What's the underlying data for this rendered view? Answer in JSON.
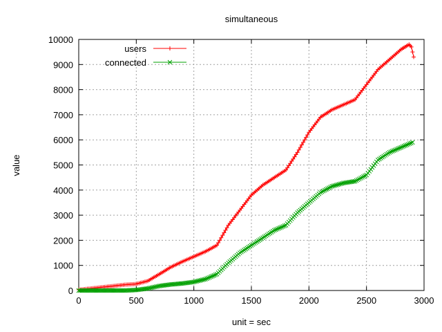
{
  "chart_data": {
    "type": "line",
    "title": "simultaneous",
    "xlabel": "unit = sec",
    "ylabel": "value",
    "xlim": [
      0,
      3000
    ],
    "ylim": [
      0,
      10000
    ],
    "xticks": [
      0,
      500,
      1000,
      1500,
      2000,
      2500,
      3000
    ],
    "yticks": [
      0,
      1000,
      2000,
      3000,
      4000,
      5000,
      6000,
      7000,
      8000,
      9000,
      10000
    ],
    "grid": true,
    "legend_position": "top-left",
    "series": [
      {
        "name": "users",
        "color": "#ff0000",
        "marker": "plus",
        "points": [
          [
            0,
            30
          ],
          [
            100,
            80
          ],
          [
            200,
            130
          ],
          [
            300,
            180
          ],
          [
            400,
            230
          ],
          [
            500,
            260
          ],
          [
            600,
            380
          ],
          [
            700,
            650
          ],
          [
            800,
            930
          ],
          [
            900,
            1150
          ],
          [
            1000,
            1350
          ],
          [
            1100,
            1550
          ],
          [
            1200,
            1800
          ],
          [
            1300,
            2600
          ],
          [
            1400,
            3200
          ],
          [
            1500,
            3800
          ],
          [
            1600,
            4200
          ],
          [
            1700,
            4500
          ],
          [
            1800,
            4800
          ],
          [
            1900,
            5500
          ],
          [
            2000,
            6300
          ],
          [
            2100,
            6900
          ],
          [
            2200,
            7200
          ],
          [
            2300,
            7400
          ],
          [
            2400,
            7600
          ],
          [
            2500,
            8200
          ],
          [
            2600,
            8800
          ],
          [
            2700,
            9200
          ],
          [
            2800,
            9600
          ],
          [
            2870,
            9800
          ],
          [
            2890,
            9700
          ],
          [
            2900,
            9500
          ],
          [
            2910,
            9300
          ]
        ]
      },
      {
        "name": "connected",
        "color": "#00a000",
        "marker": "x",
        "points": [
          [
            0,
            0
          ],
          [
            100,
            0
          ],
          [
            200,
            0
          ],
          [
            300,
            0
          ],
          [
            400,
            0
          ],
          [
            500,
            20
          ],
          [
            600,
            80
          ],
          [
            700,
            180
          ],
          [
            800,
            240
          ],
          [
            900,
            280
          ],
          [
            1000,
            340
          ],
          [
            1100,
            450
          ],
          [
            1200,
            650
          ],
          [
            1300,
            1100
          ],
          [
            1400,
            1500
          ],
          [
            1500,
            1800
          ],
          [
            1600,
            2100
          ],
          [
            1700,
            2400
          ],
          [
            1800,
            2600
          ],
          [
            1900,
            3100
          ],
          [
            2000,
            3500
          ],
          [
            2100,
            3900
          ],
          [
            2200,
            4150
          ],
          [
            2300,
            4280
          ],
          [
            2400,
            4350
          ],
          [
            2500,
            4600
          ],
          [
            2600,
            5200
          ],
          [
            2700,
            5500
          ],
          [
            2800,
            5700
          ],
          [
            2900,
            5900
          ]
        ]
      }
    ]
  }
}
